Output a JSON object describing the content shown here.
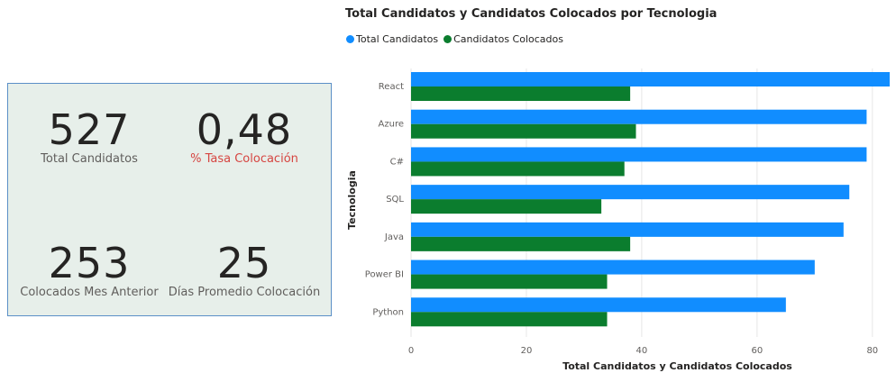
{
  "kpis": {
    "total_candidates": {
      "value": "527",
      "label": "Total Candidatos"
    },
    "placement_rate": {
      "value": "0,48",
      "label": "% Tasa Colocación"
    },
    "placed_last_month": {
      "value": "253",
      "label": "Colocados Mes Anterior"
    },
    "avg_days": {
      "value": "25",
      "label": "Días Promedio Colocación"
    }
  },
  "colors": {
    "total": "#118dff",
    "placed": "#0b7d2e",
    "rate_label": "#d64541",
    "card_bg": "#e7efea",
    "card_border": "#5b8fc7"
  },
  "chart_data": {
    "type": "bar",
    "orientation": "horizontal",
    "title": "Total Candidatos y Candidatos Colocados por Tecnologia",
    "xlabel": "Total Candidatos y Candidatos Colocados",
    "ylabel": "Tecnologia",
    "categories": [
      "React",
      "Azure",
      "C#",
      "SQL",
      "Java",
      "Power BI",
      "Python"
    ],
    "series": [
      {
        "name": "Total Candidatos",
        "values": [
          83,
          79,
          79,
          76,
          75,
          70,
          65
        ]
      },
      {
        "name": "Candidatos Colocados",
        "values": [
          38,
          39,
          37,
          33,
          38,
          34,
          34
        ]
      }
    ],
    "xlim": [
      0,
      83
    ],
    "xticks": [
      0,
      20,
      40,
      60,
      80
    ],
    "legend_position": "top-left",
    "grid": true
  }
}
